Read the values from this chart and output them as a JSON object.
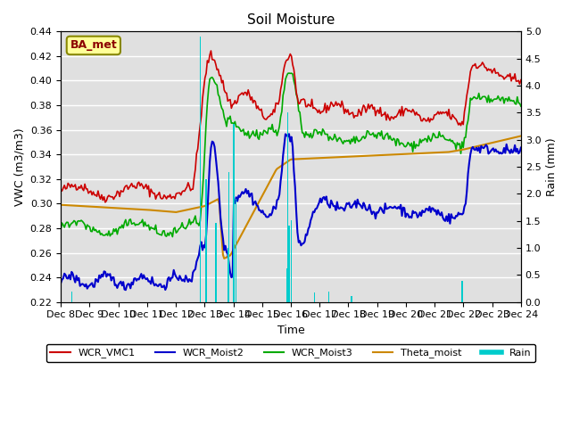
{
  "title": "Soil Moisture",
  "xlabel": "Time",
  "ylabel_left": "VWC (m3/m3)",
  "ylabel_right": "Rain (mm)",
  "ylim_left": [
    0.22,
    0.44
  ],
  "ylim_right": [
    0.0,
    5.0
  ],
  "yticks_left": [
    0.22,
    0.24,
    0.26,
    0.28,
    0.3,
    0.32,
    0.34,
    0.36,
    0.38,
    0.4,
    0.42,
    0.44
  ],
  "yticks_right": [
    0.0,
    0.5,
    1.0,
    1.5,
    2.0,
    2.5,
    3.0,
    3.5,
    4.0,
    4.5,
    5.0
  ],
  "xtick_labels": [
    "Dec 8",
    "Dec 9",
    "Dec 10",
    "Dec 11",
    "Dec 12",
    "Dec 13",
    "Dec 14",
    "Dec 15",
    "Dec 16",
    "Dec 17",
    "Dec 18",
    "Dec 19",
    "Dec 20",
    "Dec 21",
    "Dec 22",
    "Dec 23",
    "Dec 24"
  ],
  "colors": {
    "WCR_VMC1": "#cc0000",
    "WCR_Moist2": "#0000cc",
    "WCR_Moist3": "#00aa00",
    "Theta_moist": "#cc8800",
    "Rain": "#00cccc",
    "background": "#e0e0e0",
    "box_fill": "#ffff99",
    "box_edge": "#888800"
  },
  "legend_entries": [
    "WCR_VMC1",
    "WCR_Moist2",
    "WCR_Moist3",
    "Theta_moist",
    "Rain"
  ],
  "station_label": "BA_met"
}
